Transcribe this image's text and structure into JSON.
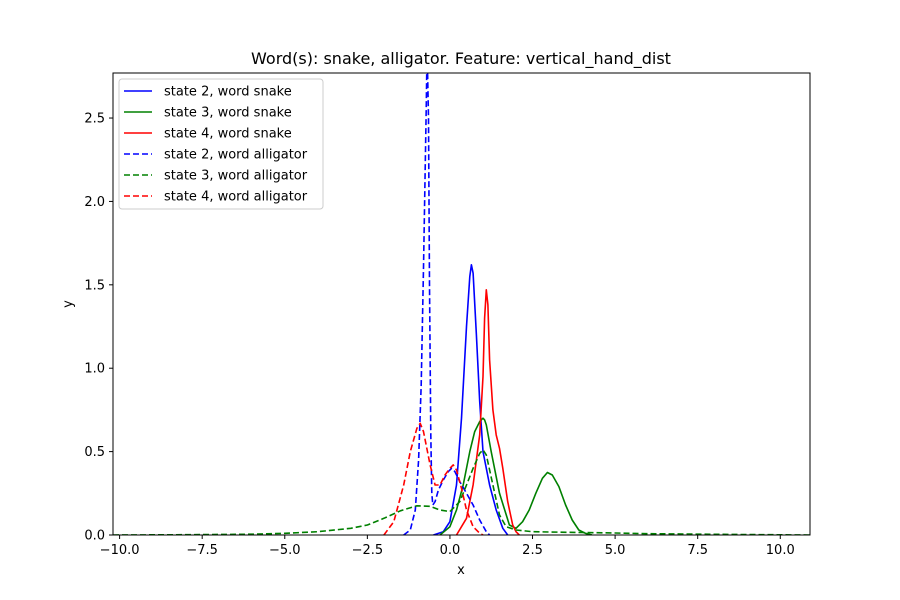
{
  "chart_data": {
    "type": "line",
    "title": "Word(s): snake, alligator. Feature: vertical_hand_dist",
    "xlabel": "x",
    "ylabel": "y",
    "xlim": [
      -10.2,
      10.9
    ],
    "ylim": [
      0.0,
      2.77
    ],
    "xticks": [
      -10.0,
      -7.5,
      -5.0,
      -2.5,
      0.0,
      2.5,
      5.0,
      7.5,
      10.0
    ],
    "xtick_labels": [
      "−10.0",
      "−7.5",
      "−5.0",
      "−2.5",
      "0.0",
      "2.5",
      "5.0",
      "7.5",
      "10.0"
    ],
    "yticks": [
      0.0,
      0.5,
      1.0,
      1.5,
      2.0,
      2.5
    ],
    "ytick_labels": [
      "0.0",
      "0.5",
      "1.0",
      "1.5",
      "2.0",
      "2.5"
    ],
    "grid": false,
    "legend_position": "top-left",
    "series": [
      {
        "name": "state 2, word snake",
        "color": "#0000ff",
        "dash": "solid",
        "x": [
          -0.5,
          -0.2,
          0.0,
          0.2,
          0.35,
          0.5,
          0.6,
          0.65,
          0.7,
          0.8,
          0.9,
          1.0,
          1.2,
          1.4,
          1.6,
          1.75
        ],
        "y": [
          0.0,
          0.02,
          0.08,
          0.3,
          0.7,
          1.25,
          1.55,
          1.62,
          1.57,
          1.2,
          0.8,
          0.5,
          0.3,
          0.15,
          0.04,
          0.0
        ]
      },
      {
        "name": "state 3, word snake",
        "color": "#008000",
        "dash": "solid",
        "x": [
          -0.3,
          0.0,
          0.2,
          0.4,
          0.6,
          0.75,
          0.9,
          1.0,
          1.05,
          1.1,
          1.25,
          1.5,
          1.8,
          2.0,
          2.2,
          2.4,
          2.6,
          2.8,
          2.95,
          3.1,
          3.3,
          3.5,
          3.7,
          3.9,
          4.1,
          4.3
        ],
        "y": [
          0.0,
          0.05,
          0.15,
          0.3,
          0.5,
          0.62,
          0.68,
          0.7,
          0.69,
          0.66,
          0.5,
          0.25,
          0.06,
          0.04,
          0.08,
          0.15,
          0.25,
          0.34,
          0.375,
          0.36,
          0.29,
          0.18,
          0.09,
          0.03,
          0.01,
          0.0
        ]
      },
      {
        "name": "state 4, word snake",
        "color": "#ff0000",
        "dash": "solid",
        "x": [
          0.2,
          0.5,
          0.7,
          0.8,
          0.9,
          1.0,
          1.05,
          1.1,
          1.15,
          1.2,
          1.3,
          1.4,
          1.5,
          1.6,
          1.75,
          1.9,
          2.0,
          2.1
        ],
        "y": [
          0.0,
          0.1,
          0.3,
          0.45,
          0.6,
          0.95,
          1.3,
          1.47,
          1.38,
          1.05,
          0.75,
          0.6,
          0.52,
          0.4,
          0.2,
          0.06,
          0.02,
          0.0
        ]
      },
      {
        "name": "state 2, word alligator",
        "color": "#0000ff",
        "dash": "dashed",
        "x": [
          -1.4,
          -1.2,
          -1.05,
          -0.95,
          -0.87,
          -0.8,
          -0.75,
          -0.72,
          -0.7,
          -0.68,
          -0.65,
          -0.62,
          -0.58,
          -0.55,
          -0.52,
          -0.45,
          -0.35,
          -0.2,
          -0.05,
          0.05,
          0.15,
          0.3,
          0.5,
          0.7,
          0.9,
          1.1,
          1.2
        ],
        "y": [
          0.0,
          0.03,
          0.15,
          0.45,
          0.9,
          1.6,
          2.2,
          2.55,
          2.8,
          2.8,
          2.5,
          1.5,
          0.6,
          0.25,
          0.18,
          0.2,
          0.27,
          0.33,
          0.38,
          0.4,
          0.38,
          0.32,
          0.25,
          0.18,
          0.09,
          0.02,
          0.0
        ]
      },
      {
        "name": "state 3, word alligator",
        "color": "#008000",
        "dash": "dashed",
        "x": [
          -10.2,
          -8.0,
          -6.0,
          -5.0,
          -4.0,
          -3.0,
          -2.5,
          -2.0,
          -1.5,
          -1.0,
          -0.6,
          -0.3,
          0.0,
          0.3,
          0.5,
          0.7,
          0.9,
          1.0,
          1.1,
          1.3,
          1.5,
          1.7,
          2.0,
          2.5,
          3.0,
          4.0,
          5.0,
          6.0,
          8.0,
          10.9
        ],
        "y": [
          0.0,
          0.002,
          0.005,
          0.01,
          0.02,
          0.04,
          0.06,
          0.1,
          0.145,
          0.175,
          0.172,
          0.15,
          0.14,
          0.2,
          0.3,
          0.4,
          0.49,
          0.51,
          0.48,
          0.3,
          0.12,
          0.05,
          0.03,
          0.02,
          0.018,
          0.015,
          0.012,
          0.008,
          0.004,
          0.0
        ]
      },
      {
        "name": "state 4, word alligator",
        "color": "#ff0000",
        "dash": "dashed",
        "x": [
          -2.0,
          -1.7,
          -1.4,
          -1.2,
          -1.0,
          -0.9,
          -0.8,
          -0.6,
          -0.45,
          -0.3,
          -0.15,
          0.0,
          0.1,
          0.2,
          0.35,
          0.5,
          0.7,
          0.9,
          1.0
        ],
        "y": [
          0.0,
          0.08,
          0.3,
          0.5,
          0.64,
          0.67,
          0.62,
          0.42,
          0.3,
          0.3,
          0.36,
          0.4,
          0.42,
          0.39,
          0.28,
          0.15,
          0.05,
          0.01,
          0.0
        ]
      }
    ]
  }
}
